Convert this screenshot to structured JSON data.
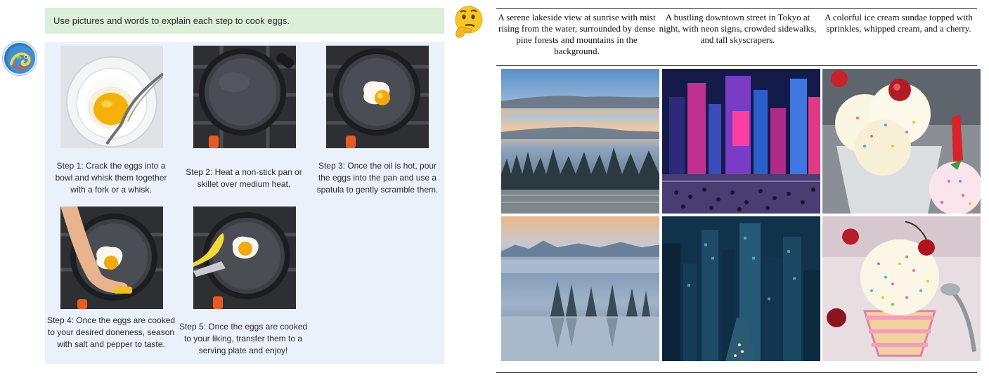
{
  "left_panel": {
    "prompt": "Use pictures and words to explain each step to cook eggs.",
    "steps": [
      {
        "caption": "Step 1: Crack the eggs into a bowl and whisk them together with a fork or a whisk."
      },
      {
        "caption": "Step 2: Heat a non-stick pan or skillet over medium heat."
      },
      {
        "caption": "Step 3: Once the oil is hot, pour the eggs into the pan and use a spatula to gently scramble them."
      },
      {
        "caption": "Step 4: Once the eggs are cooked to your desired doneness, season with salt and pepper to taste."
      },
      {
        "caption": "Step 5: Once the eggs are cooked to your liking, transfer them to a serving plate and enjoy!"
      }
    ],
    "avatar_icon": "chameleon-avatar-icon",
    "thinking_icon": "thinking-face-icon"
  },
  "right_panel": {
    "columns": [
      {
        "header": "A serene lakeside view at sunrise with mist rising from the water, surrounded by dense pine forests and mountains in the background."
      },
      {
        "header": "A bustling downtown street in Tokyo at night, with neon signs, crowded sidewalks, and tall skyscrapers."
      },
      {
        "header": "A colorful ice cream sundae topped with sprinkles, whipped cream, and a cherry."
      }
    ]
  }
}
